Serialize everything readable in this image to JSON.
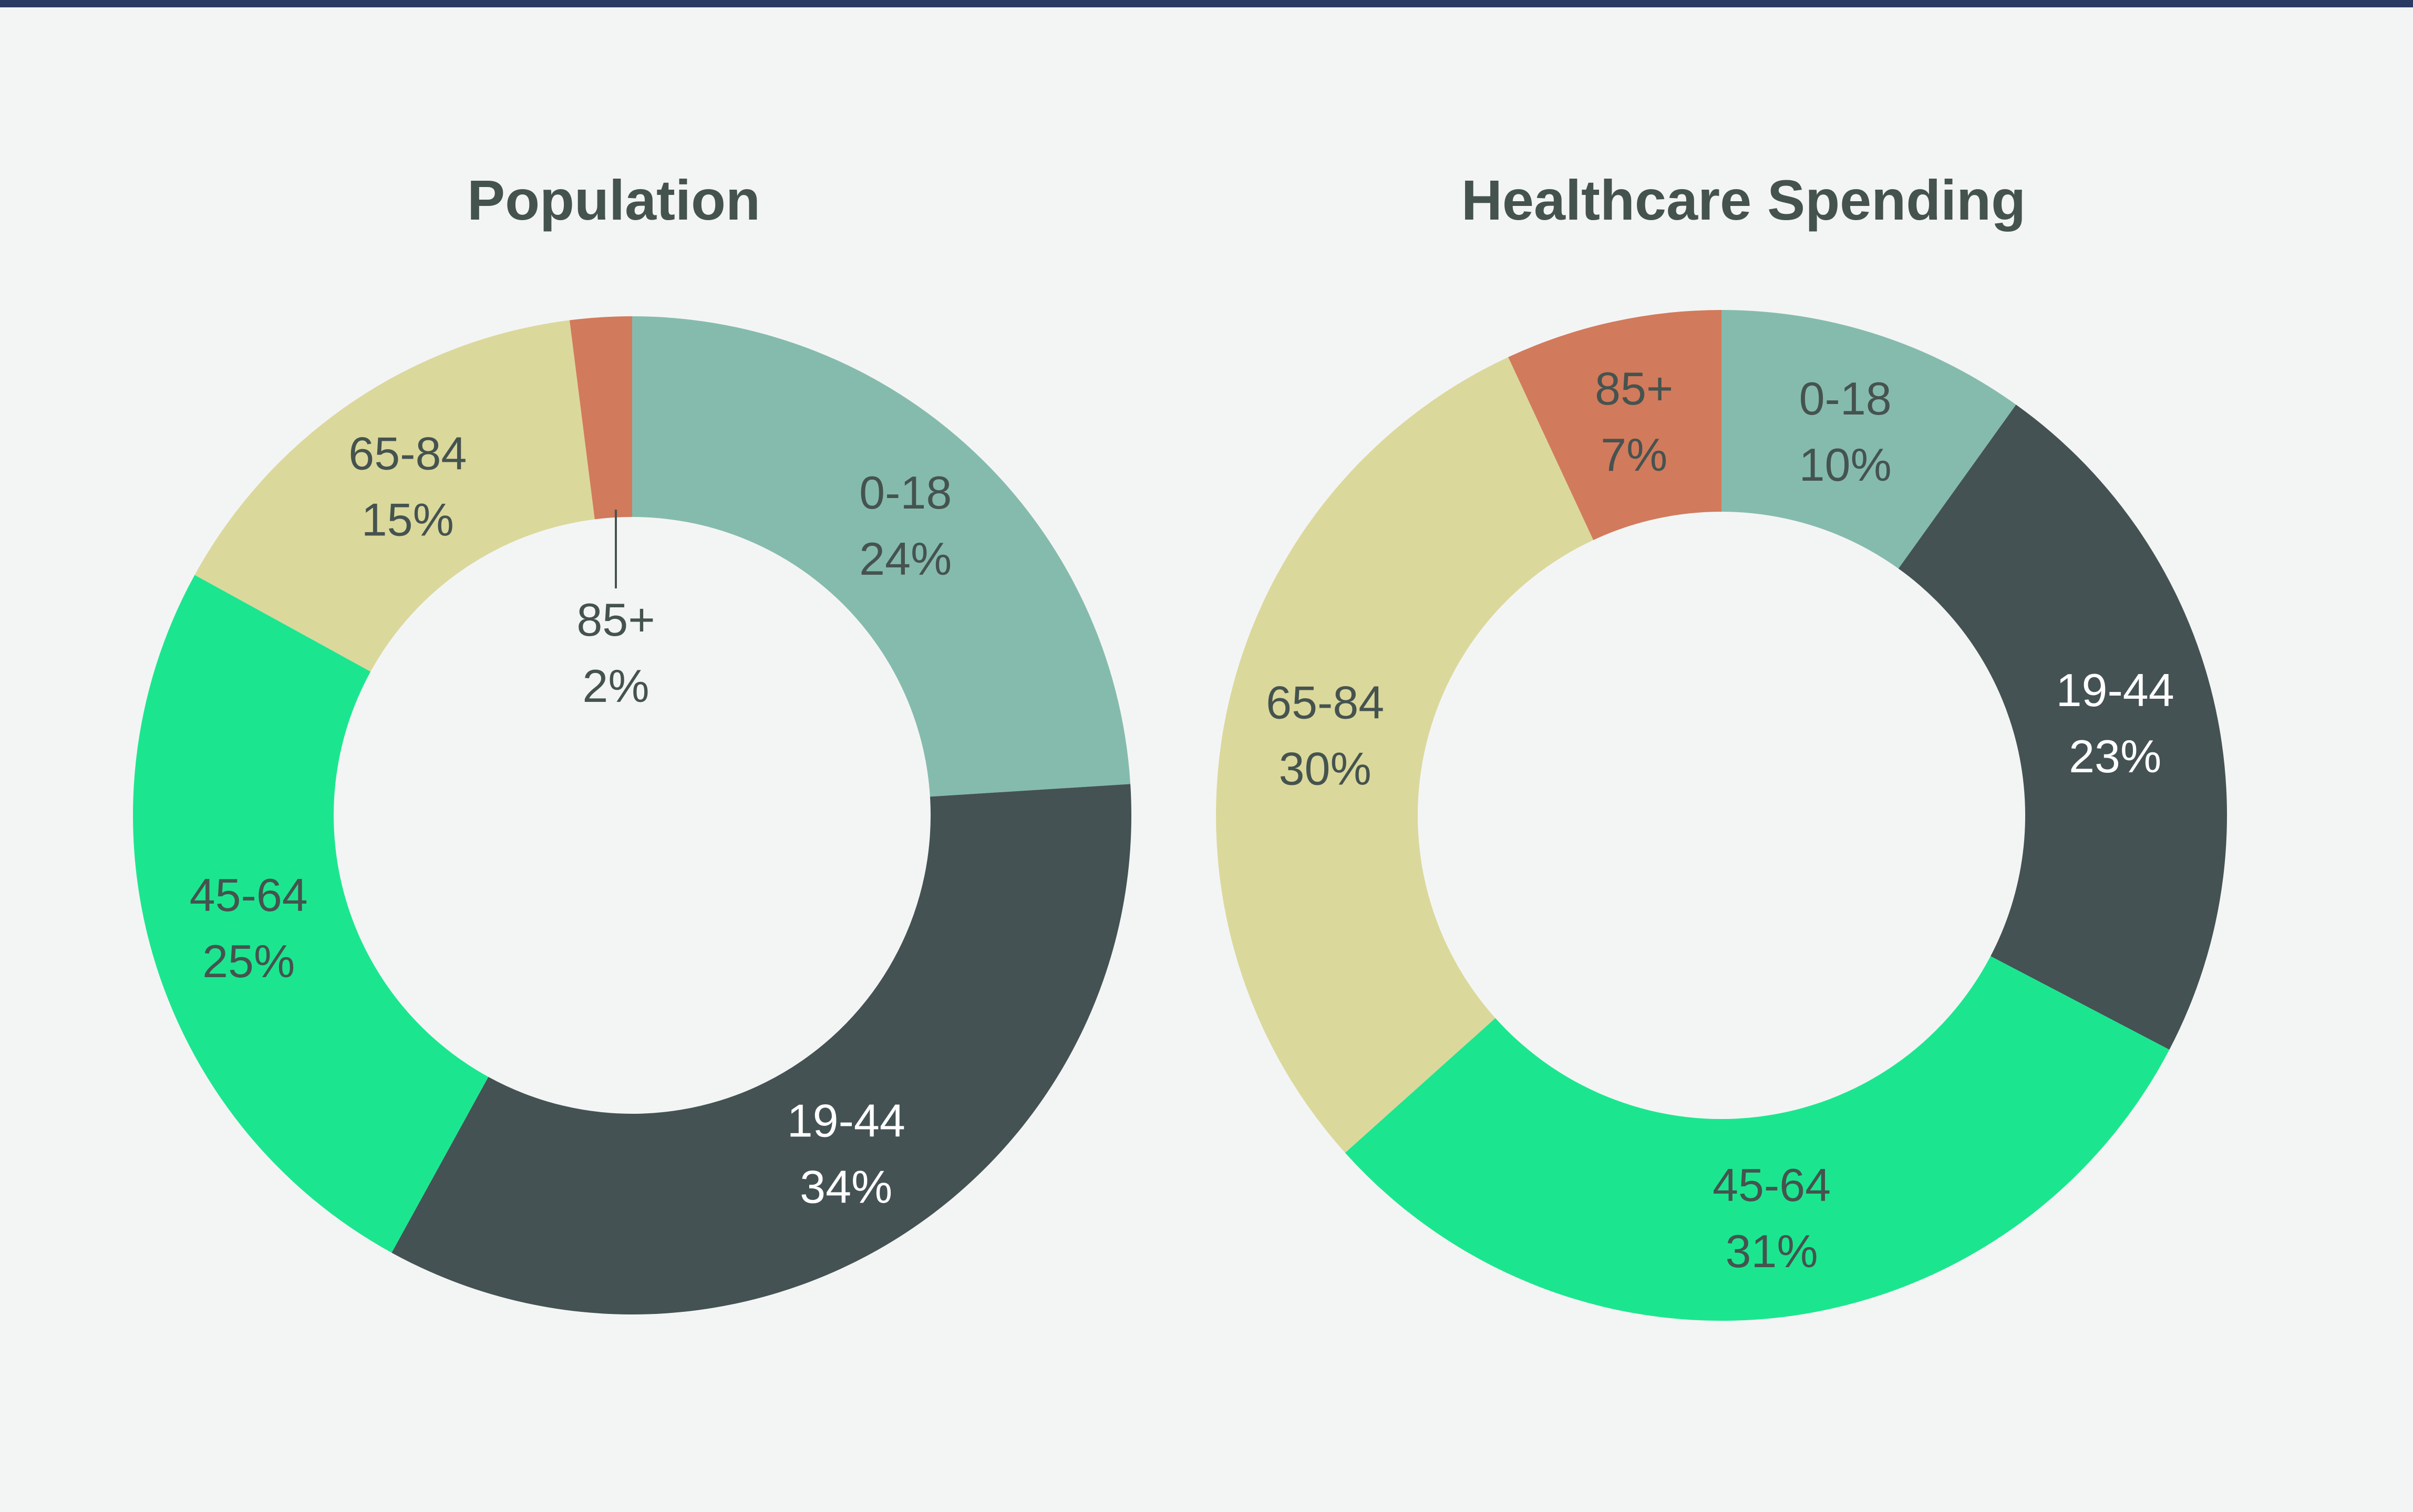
{
  "colors": {
    "background": "#f3f5f4",
    "top_rule": "#2a3b63",
    "title_text": "#45534f"
  },
  "chart_data": [
    {
      "type": "pie",
      "variant": "donut",
      "title": "Population",
      "categories": [
        "0-18",
        "19-44",
        "45-64",
        "65-84",
        "85+"
      ],
      "values": [
        24,
        34,
        25,
        15,
        2
      ],
      "value_labels": [
        "24%",
        "34%",
        "25%",
        "15%",
        "2%"
      ],
      "colors": [
        "#85bbad",
        "#445254",
        "#1be68f",
        "#dbd89c",
        "#d27a5c"
      ],
      "label_colors": [
        "#45534f",
        "#ffffff",
        "#45534f",
        "#45534f",
        "#45534f"
      ],
      "annotations": [
        "85+ label placed inside the donut hole with a leader line"
      ]
    },
    {
      "type": "pie",
      "variant": "donut",
      "title": "Healthcare Spending",
      "categories": [
        "0-18",
        "19-44",
        "45-64",
        "65-84",
        "85+"
      ],
      "values": [
        10,
        23,
        31,
        30,
        7
      ],
      "value_labels": [
        "10%",
        "23%",
        "31%",
        "30%",
        "7%"
      ],
      "colors": [
        "#85bbad",
        "#445254",
        "#1be68f",
        "#dbd89c",
        "#d27a5c"
      ],
      "label_colors": [
        "#45534f",
        "#ffffff",
        "#45534f",
        "#45534f",
        "#45534f"
      ]
    }
  ]
}
